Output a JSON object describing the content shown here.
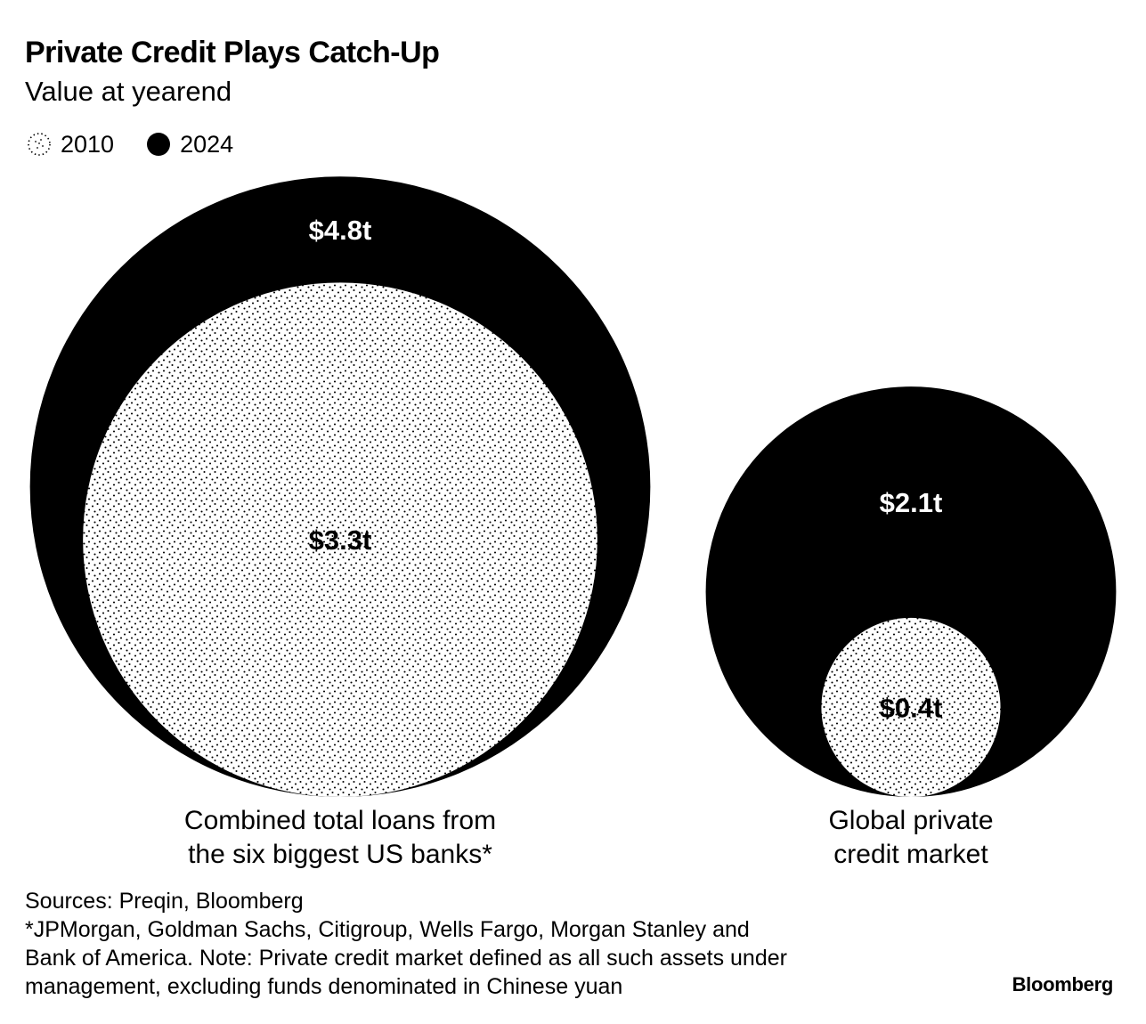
{
  "title": "Private Credit Plays Catch-Up",
  "subtitle": "Value at yearend",
  "legend": [
    {
      "label": "2010",
      "style": "dotted"
    },
    {
      "label": "2024",
      "style": "solid"
    }
  ],
  "chart_data": {
    "type": "bubble",
    "title": "Private Credit Plays Catch-Up",
    "subtitle": "Value at yearend",
    "unit": "trillion USD",
    "series": [
      {
        "name": "2010",
        "style": "dotted",
        "color": "#ffffff"
      },
      {
        "name": "2024",
        "style": "solid",
        "color": "#000000"
      }
    ],
    "groups": [
      {
        "category": "Combined total loans from the six biggest US banks*",
        "label_lines": [
          "Combined total loans from",
          "the six biggest US banks*"
        ],
        "values": [
          {
            "year": "2010",
            "value": 3.3,
            "label": "$3.3t"
          },
          {
            "year": "2024",
            "value": 4.8,
            "label": "$4.8t"
          }
        ]
      },
      {
        "category": "Global private credit market",
        "label_lines": [
          "Global private",
          "credit market"
        ],
        "values": [
          {
            "year": "2010",
            "value": 0.4,
            "label": "$0.4t"
          },
          {
            "year": "2024",
            "value": 2.1,
            "label": "$2.1t"
          }
        ]
      }
    ]
  },
  "footnotes": [
    "Sources: Preqin, Bloomberg",
    "*JPMorgan, Goldman Sachs, Citigroup, Wells Fargo, Morgan Stanley and",
    "Bank of America. Note: Private credit market defined as all such assets under",
    "management, excluding funds denominated in Chinese yuan"
  ],
  "brand": "Bloomberg",
  "colors": {
    "ink": "#000000",
    "paper": "#ffffff"
  }
}
